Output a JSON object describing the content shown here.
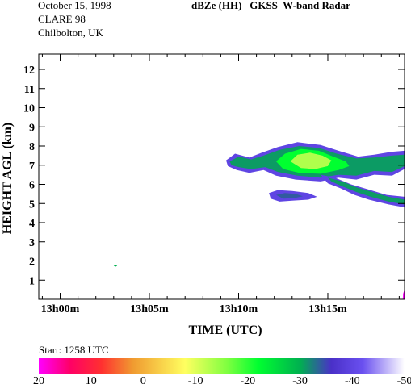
{
  "header": {
    "date": "October 15, 1998",
    "campaign": "CLARE 98",
    "location": "Chilbolton, UK",
    "product": "dBZe (HH)   GKSS  W-band Radar"
  },
  "start_note": "Start: 1258 UTC",
  "chart_data": {
    "type": "heatmap",
    "title": "dBZe (HH)   GKSS  W-band Radar",
    "xlabel": "TIME (UTC)",
    "ylabel": "HEIGHT AGL (km)",
    "x_ticks": [
      "13h00m",
      "13h05m",
      "13h10m",
      "13h15m"
    ],
    "x_tick_minutes": [
      0,
      5,
      10,
      15
    ],
    "xlim_minutes_after_1300": [
      -1.2,
      19.3
    ],
    "y_ticks": [
      1,
      2,
      3,
      4,
      5,
      6,
      7,
      8,
      9,
      10,
      11,
      12
    ],
    "ylim_km": [
      0,
      12.8
    ],
    "colorbar": {
      "units": "dBZe",
      "ticks": [
        "20",
        "10",
        "0",
        "-10",
        "-20",
        "-30",
        "-40",
        "-50"
      ],
      "range": [
        20,
        -50
      ],
      "stops": [
        {
          "v": 20,
          "color": "#ff00ff"
        },
        {
          "v": 14,
          "color": "#ff0066"
        },
        {
          "v": 8,
          "color": "#ff3030"
        },
        {
          "v": 2,
          "color": "#f09a30"
        },
        {
          "v": -8,
          "color": "#ffff60"
        },
        {
          "v": -16,
          "color": "#80ff40"
        },
        {
          "v": -22,
          "color": "#00ff30"
        },
        {
          "v": -30,
          "color": "#00b050"
        },
        {
          "v": -36,
          "color": "#4a30c8"
        },
        {
          "v": -42,
          "color": "#6a50f0"
        },
        {
          "v": -50,
          "color": "#ffffff"
        }
      ]
    },
    "echo_regions": [
      {
        "name": "main-layer-edge",
        "dbz": -40,
        "points": [
          [
            9.3,
            7.25
          ],
          [
            9.8,
            7.6
          ],
          [
            10.6,
            7.4
          ],
          [
            11.3,
            7.65
          ],
          [
            12.2,
            7.95
          ],
          [
            13.3,
            8.2
          ],
          [
            14.6,
            8.05
          ],
          [
            15.6,
            7.75
          ],
          [
            16.7,
            7.45
          ],
          [
            17.6,
            7.55
          ],
          [
            18.6,
            7.7
          ],
          [
            19.3,
            7.75
          ],
          [
            19.3,
            6.8
          ],
          [
            18.6,
            6.45
          ],
          [
            17.6,
            6.5
          ],
          [
            16.6,
            6.25
          ],
          [
            15.6,
            6.35
          ],
          [
            14.6,
            6.15
          ],
          [
            13.2,
            6.25
          ],
          [
            12.1,
            6.45
          ],
          [
            11.4,
            6.75
          ],
          [
            10.6,
            6.6
          ],
          [
            9.9,
            6.75
          ],
          [
            9.4,
            6.95
          ]
        ]
      },
      {
        "name": "main-layer-outer",
        "dbz": -31,
        "points": [
          [
            9.5,
            7.2
          ],
          [
            10.0,
            7.45
          ],
          [
            10.7,
            7.3
          ],
          [
            11.4,
            7.5
          ],
          [
            12.3,
            7.8
          ],
          [
            13.4,
            8.0
          ],
          [
            14.5,
            7.9
          ],
          [
            15.5,
            7.6
          ],
          [
            16.6,
            7.35
          ],
          [
            17.6,
            7.4
          ],
          [
            18.6,
            7.5
          ],
          [
            19.3,
            7.55
          ],
          [
            19.3,
            6.95
          ],
          [
            18.6,
            6.65
          ],
          [
            17.6,
            6.7
          ],
          [
            16.6,
            6.45
          ],
          [
            15.6,
            6.5
          ],
          [
            14.6,
            6.35
          ],
          [
            13.3,
            6.45
          ],
          [
            12.2,
            6.65
          ],
          [
            11.5,
            6.9
          ],
          [
            10.7,
            6.8
          ],
          [
            10.0,
            6.9
          ],
          [
            9.6,
            7.0
          ]
        ]
      },
      {
        "name": "main-layer-middle",
        "dbz": -22,
        "points": [
          [
            12.1,
            7.2
          ],
          [
            12.6,
            7.6
          ],
          [
            13.5,
            7.85
          ],
          [
            14.5,
            7.75
          ],
          [
            15.3,
            7.45
          ],
          [
            16.0,
            7.2
          ],
          [
            16.2,
            6.95
          ],
          [
            15.6,
            6.75
          ],
          [
            14.6,
            6.55
          ],
          [
            13.4,
            6.6
          ],
          [
            12.5,
            6.8
          ]
        ]
      },
      {
        "name": "main-layer-core",
        "dbz": -13,
        "points": [
          [
            12.9,
            7.2
          ],
          [
            13.3,
            7.55
          ],
          [
            14.0,
            7.65
          ],
          [
            14.7,
            7.5
          ],
          [
            15.2,
            7.25
          ],
          [
            15.0,
            6.95
          ],
          [
            14.3,
            6.8
          ],
          [
            13.5,
            6.85
          ]
        ]
      },
      {
        "name": "fallstreak-edge",
        "dbz": -40,
        "points": [
          [
            14.6,
            6.5
          ],
          [
            15.4,
            6.35
          ],
          [
            16.3,
            6.0
          ],
          [
            17.2,
            5.75
          ],
          [
            18.3,
            5.45
          ],
          [
            19.3,
            5.35
          ],
          [
            19.3,
            4.8
          ],
          [
            18.4,
            4.95
          ],
          [
            17.3,
            5.2
          ],
          [
            16.5,
            5.45
          ],
          [
            15.7,
            5.8
          ],
          [
            15.0,
            6.05
          ]
        ]
      },
      {
        "name": "fallstreak-inner",
        "dbz": -31,
        "points": [
          [
            15.0,
            6.35
          ],
          [
            15.8,
            6.15
          ],
          [
            16.6,
            5.85
          ],
          [
            17.5,
            5.6
          ],
          [
            18.4,
            5.35
          ],
          [
            19.3,
            5.2
          ],
          [
            19.3,
            4.95
          ],
          [
            18.4,
            5.1
          ],
          [
            17.4,
            5.35
          ],
          [
            16.6,
            5.6
          ],
          [
            15.8,
            5.9
          ],
          [
            15.2,
            6.15
          ]
        ]
      },
      {
        "name": "small-cell-edge",
        "dbz": -40,
        "points": [
          [
            11.7,
            5.55
          ],
          [
            12.2,
            5.7
          ],
          [
            13.0,
            5.65
          ],
          [
            13.9,
            5.55
          ],
          [
            14.4,
            5.35
          ],
          [
            13.9,
            5.2
          ],
          [
            13.0,
            5.15
          ],
          [
            12.3,
            5.1
          ],
          [
            11.8,
            5.25
          ]
        ]
      },
      {
        "name": "small-cell-inner",
        "dbz": -34,
        "points": [
          [
            12.1,
            5.45
          ],
          [
            12.6,
            5.55
          ],
          [
            13.2,
            5.5
          ],
          [
            13.6,
            5.38
          ],
          [
            13.1,
            5.28
          ],
          [
            12.5,
            5.25
          ]
        ]
      },
      {
        "name": "speck",
        "dbz": -30,
        "points": [
          [
            3.0,
            1.75
          ],
          [
            3.1,
            1.8
          ],
          [
            3.2,
            1.75
          ],
          [
            3.1,
            1.7
          ]
        ]
      },
      {
        "name": "edge-spike",
        "dbz": 20,
        "points": [
          [
            19.2,
            0.0
          ],
          [
            19.3,
            0.0
          ],
          [
            19.3,
            0.5
          ],
          [
            19.22,
            0.3
          ]
        ]
      }
    ]
  }
}
